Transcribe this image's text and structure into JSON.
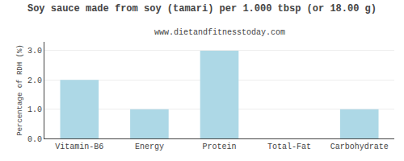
{
  "chart_data": {
    "type": "bar",
    "title": "Soy sauce made from soy (tamari) per 1.000 tbsp (or 18.00 g)",
    "subtitle": "www.dietandfitnesstoday.com",
    "categories": [
      "Vitamin-B6",
      "Energy",
      "Protein",
      "Total-Fat",
      "Carbohydrate"
    ],
    "values": [
      2.0,
      1.0,
      3.0,
      0.0,
      1.0
    ],
    "color": "#add8e6",
    "ylabel": "Percentage of RDH (%)",
    "ylim": [
      0,
      3.3
    ],
    "yticks": [
      {
        "value": 0.0,
        "label": "0.0"
      },
      {
        "value": 1.0,
        "label": "1.0"
      },
      {
        "value": 2.0,
        "label": "2.0"
      },
      {
        "value": 3.0,
        "label": "3.0"
      }
    ],
    "grid": true
  }
}
